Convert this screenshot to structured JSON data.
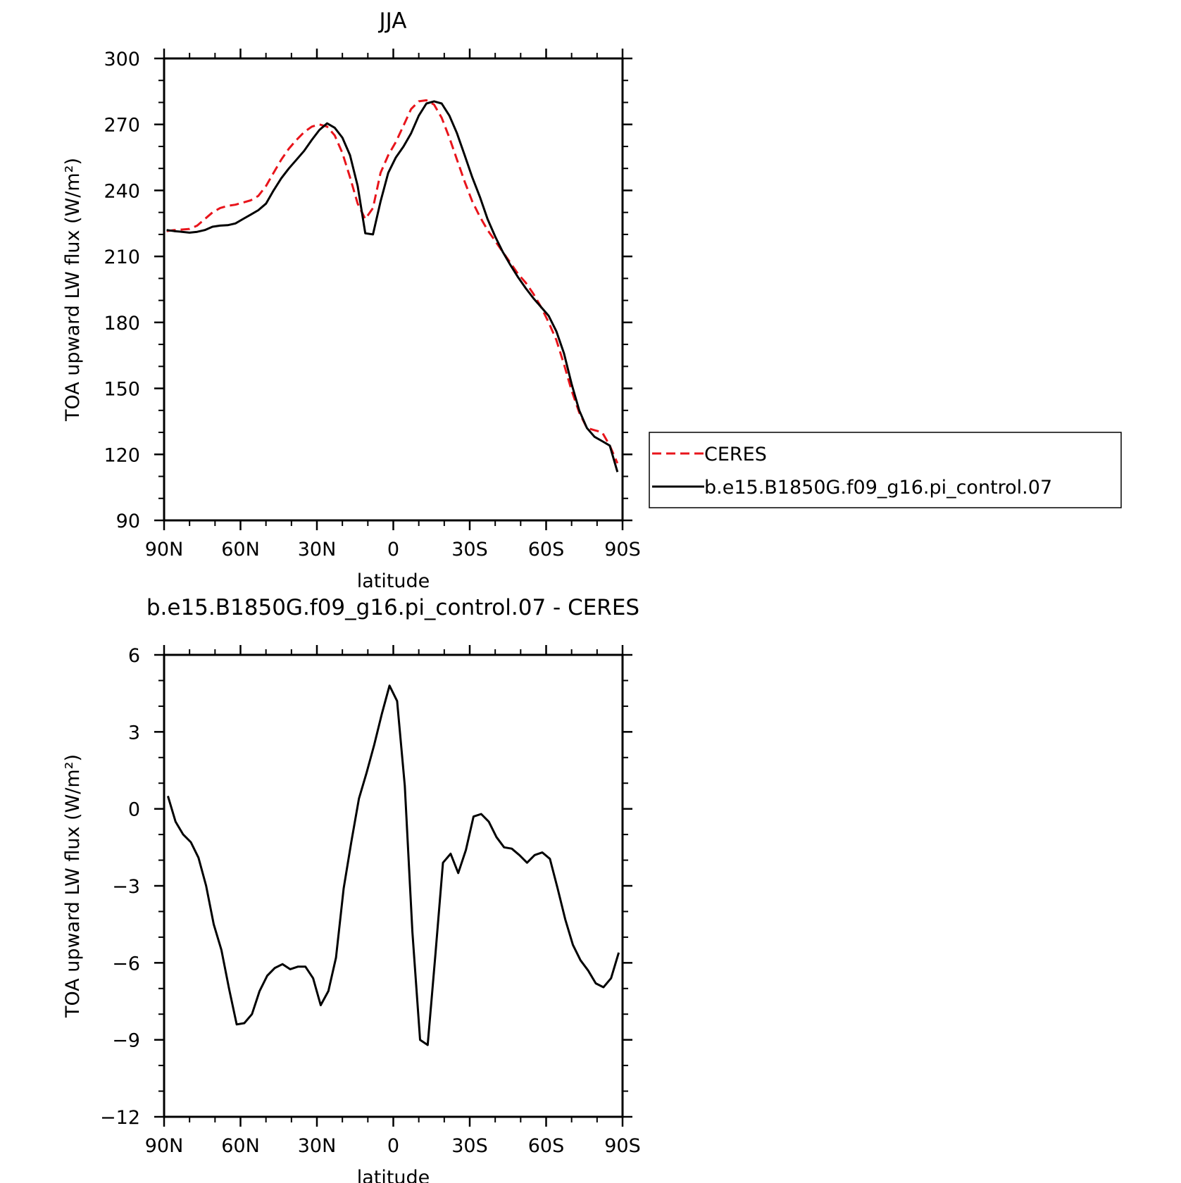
{
  "chart_data": [
    {
      "type": "line",
      "title": "JJA",
      "xlabel": "latitude",
      "ylabel": "TOA upward LW flux (W/m²)",
      "xlim": [
        90,
        -90
      ],
      "ylim": [
        90,
        300
      ],
      "xticks": [
        90,
        60,
        30,
        0,
        -30,
        -60,
        -90
      ],
      "xticklabels": [
        "90N",
        "60N",
        "30N",
        "0",
        "30S",
        "60S",
        "90S"
      ],
      "yticks": [
        90,
        120,
        150,
        180,
        210,
        240,
        270,
        300
      ],
      "yticklabels": [
        "90",
        "120",
        "150",
        "180",
        "210",
        "240",
        "270",
        "300"
      ],
      "grid": false,
      "legend_position": "right",
      "series": [
        {
          "name": "CERES",
          "color": "#e8141b",
          "style": "dashed",
          "x": [
            89,
            86,
            83,
            80,
            77,
            74,
            71,
            68,
            65,
            62,
            59,
            56,
            53,
            50,
            47,
            44,
            41,
            38,
            35,
            32,
            29,
            26,
            23,
            20,
            17,
            14,
            11,
            8,
            5,
            2,
            -1,
            -4,
            -7,
            -10,
            -13,
            -16,
            -19,
            -22,
            -25,
            -28,
            -31,
            -34,
            -37,
            -40,
            -43,
            -46,
            -49,
            -52,
            -55,
            -58,
            -61,
            -64,
            -67,
            -70,
            -73,
            -76,
            -79,
            -82,
            -85,
            -88
          ],
          "y": [
            221.5,
            222,
            222.2,
            222.5,
            224,
            227,
            230,
            232,
            233,
            233.5,
            234.5,
            235.5,
            237.5,
            242,
            248,
            254,
            259,
            263,
            266.5,
            269,
            270,
            269,
            265,
            257,
            246,
            234,
            227,
            232,
            248,
            256,
            262,
            269.5,
            277,
            280.5,
            281,
            279,
            273,
            264,
            254,
            244,
            235,
            228,
            222,
            217,
            212,
            207,
            202,
            198,
            193,
            187,
            180,
            172,
            161,
            149,
            139,
            132,
            131,
            130,
            124,
            116
          ]
        },
        {
          "name": "b.e15.B1850G.f09_g16.pi_control.07",
          "color": "#000000",
          "style": "solid",
          "x": [
            89,
            86,
            83,
            80,
            77,
            74,
            71,
            68,
            65,
            62,
            59,
            56,
            53,
            50,
            47,
            44,
            41,
            38,
            35,
            32,
            29,
            26,
            23,
            20,
            17,
            14,
            11,
            8,
            5,
            2,
            -1,
            -4,
            -7,
            -10,
            -13,
            -16,
            -19,
            -22,
            -25,
            -28,
            -31,
            -34,
            -37,
            -40,
            -43,
            -46,
            -49,
            -52,
            -55,
            -58,
            -61,
            -64,
            -67,
            -70,
            -73,
            -76,
            -79,
            -82,
            -85,
            -88
          ],
          "y": [
            222,
            221.5,
            221.2,
            220.8,
            221.2,
            222,
            223.5,
            224,
            224.2,
            225,
            227,
            229,
            231,
            234,
            240,
            245.5,
            250,
            254,
            258,
            263,
            267.5,
            270.5,
            268.5,
            264,
            256,
            242,
            220.5,
            220,
            235,
            248,
            255,
            260,
            266,
            274,
            279.5,
            280.5,
            279.5,
            274,
            266,
            256,
            246,
            237,
            227,
            219,
            212,
            206,
            200.5,
            195.5,
            191,
            187,
            183,
            176,
            166,
            152,
            140,
            132,
            128,
            126,
            124,
            112
          ]
        }
      ]
    },
    {
      "type": "line",
      "title": "b.e15.B1850G.f09_g16.pi_control.07 - CERES",
      "xlabel": "latitude",
      "ylabel": "TOA upward LW flux (W/m²)",
      "xlim": [
        90,
        -90
      ],
      "ylim": [
        -12,
        6
      ],
      "xticks": [
        90,
        60,
        30,
        0,
        -30,
        -60,
        -90
      ],
      "xticklabels": [
        "90N",
        "60N",
        "30N",
        "0",
        "30S",
        "60S",
        "90S"
      ],
      "yticks": [
        -12,
        -9,
        -6,
        -3,
        0,
        3,
        6
      ],
      "yticklabels": [
        "−12",
        "−9",
        "−6",
        "−3",
        "0",
        "3",
        "6"
      ],
      "grid": false,
      "series": [
        {
          "color": "#000000",
          "style": "solid",
          "x": [
            88.5,
            85.5,
            82.5,
            79.5,
            76.5,
            73.5,
            70.5,
            67.5,
            64.5,
            61.5,
            58.5,
            55.5,
            52.5,
            49.5,
            46.5,
            43.5,
            40.5,
            37.5,
            34.5,
            31.5,
            28.5,
            25.5,
            22.5,
            19.5,
            16.5,
            13.5,
            10.5,
            7.5,
            4.5,
            1.5,
            -1.5,
            -4.5,
            -7.5,
            -10.5,
            -13.5,
            -16.5,
            -19.5,
            -22.5,
            -25.5,
            -28.5,
            -31.5,
            -34.5,
            -37.5,
            -40.5,
            -43.5,
            -46.5,
            -49.5,
            -52.5,
            -55.5,
            -58.5,
            -61.5,
            -64.5,
            -67.5,
            -70.5,
            -73.5,
            -76.5,
            -79.5,
            -82.5,
            -85.5,
            -88.5
          ],
          "y": [
            0.5,
            -0.5,
            -1.0,
            -1.3,
            -1.9,
            -3.0,
            -4.5,
            -5.5,
            -7.0,
            -8.4,
            -8.35,
            -8.0,
            -7.1,
            -6.5,
            -6.2,
            -6.05,
            -6.25,
            -6.15,
            -6.15,
            -6.6,
            -7.65,
            -7.1,
            -5.8,
            -3.1,
            -1.3,
            0.4,
            1.4,
            2.5,
            3.7,
            4.8,
            4.2,
            0.9,
            -4.8,
            -9.0,
            -9.2,
            -5.7,
            -2.1,
            -1.75,
            -2.5,
            -1.6,
            -0.3,
            -0.2,
            -0.5,
            -1.1,
            -1.5,
            -1.55,
            -1.8,
            -2.1,
            -1.8,
            -1.7,
            -1.95,
            -3.1,
            -4.3,
            -5.3,
            -5.9,
            -6.3,
            -6.8,
            -6.95,
            -6.6,
            -5.6
          ]
        }
      ]
    }
  ],
  "legend": {
    "entries": [
      "CERES",
      "b.e15.B1850G.f09_g16.pi_control.07"
    ]
  }
}
